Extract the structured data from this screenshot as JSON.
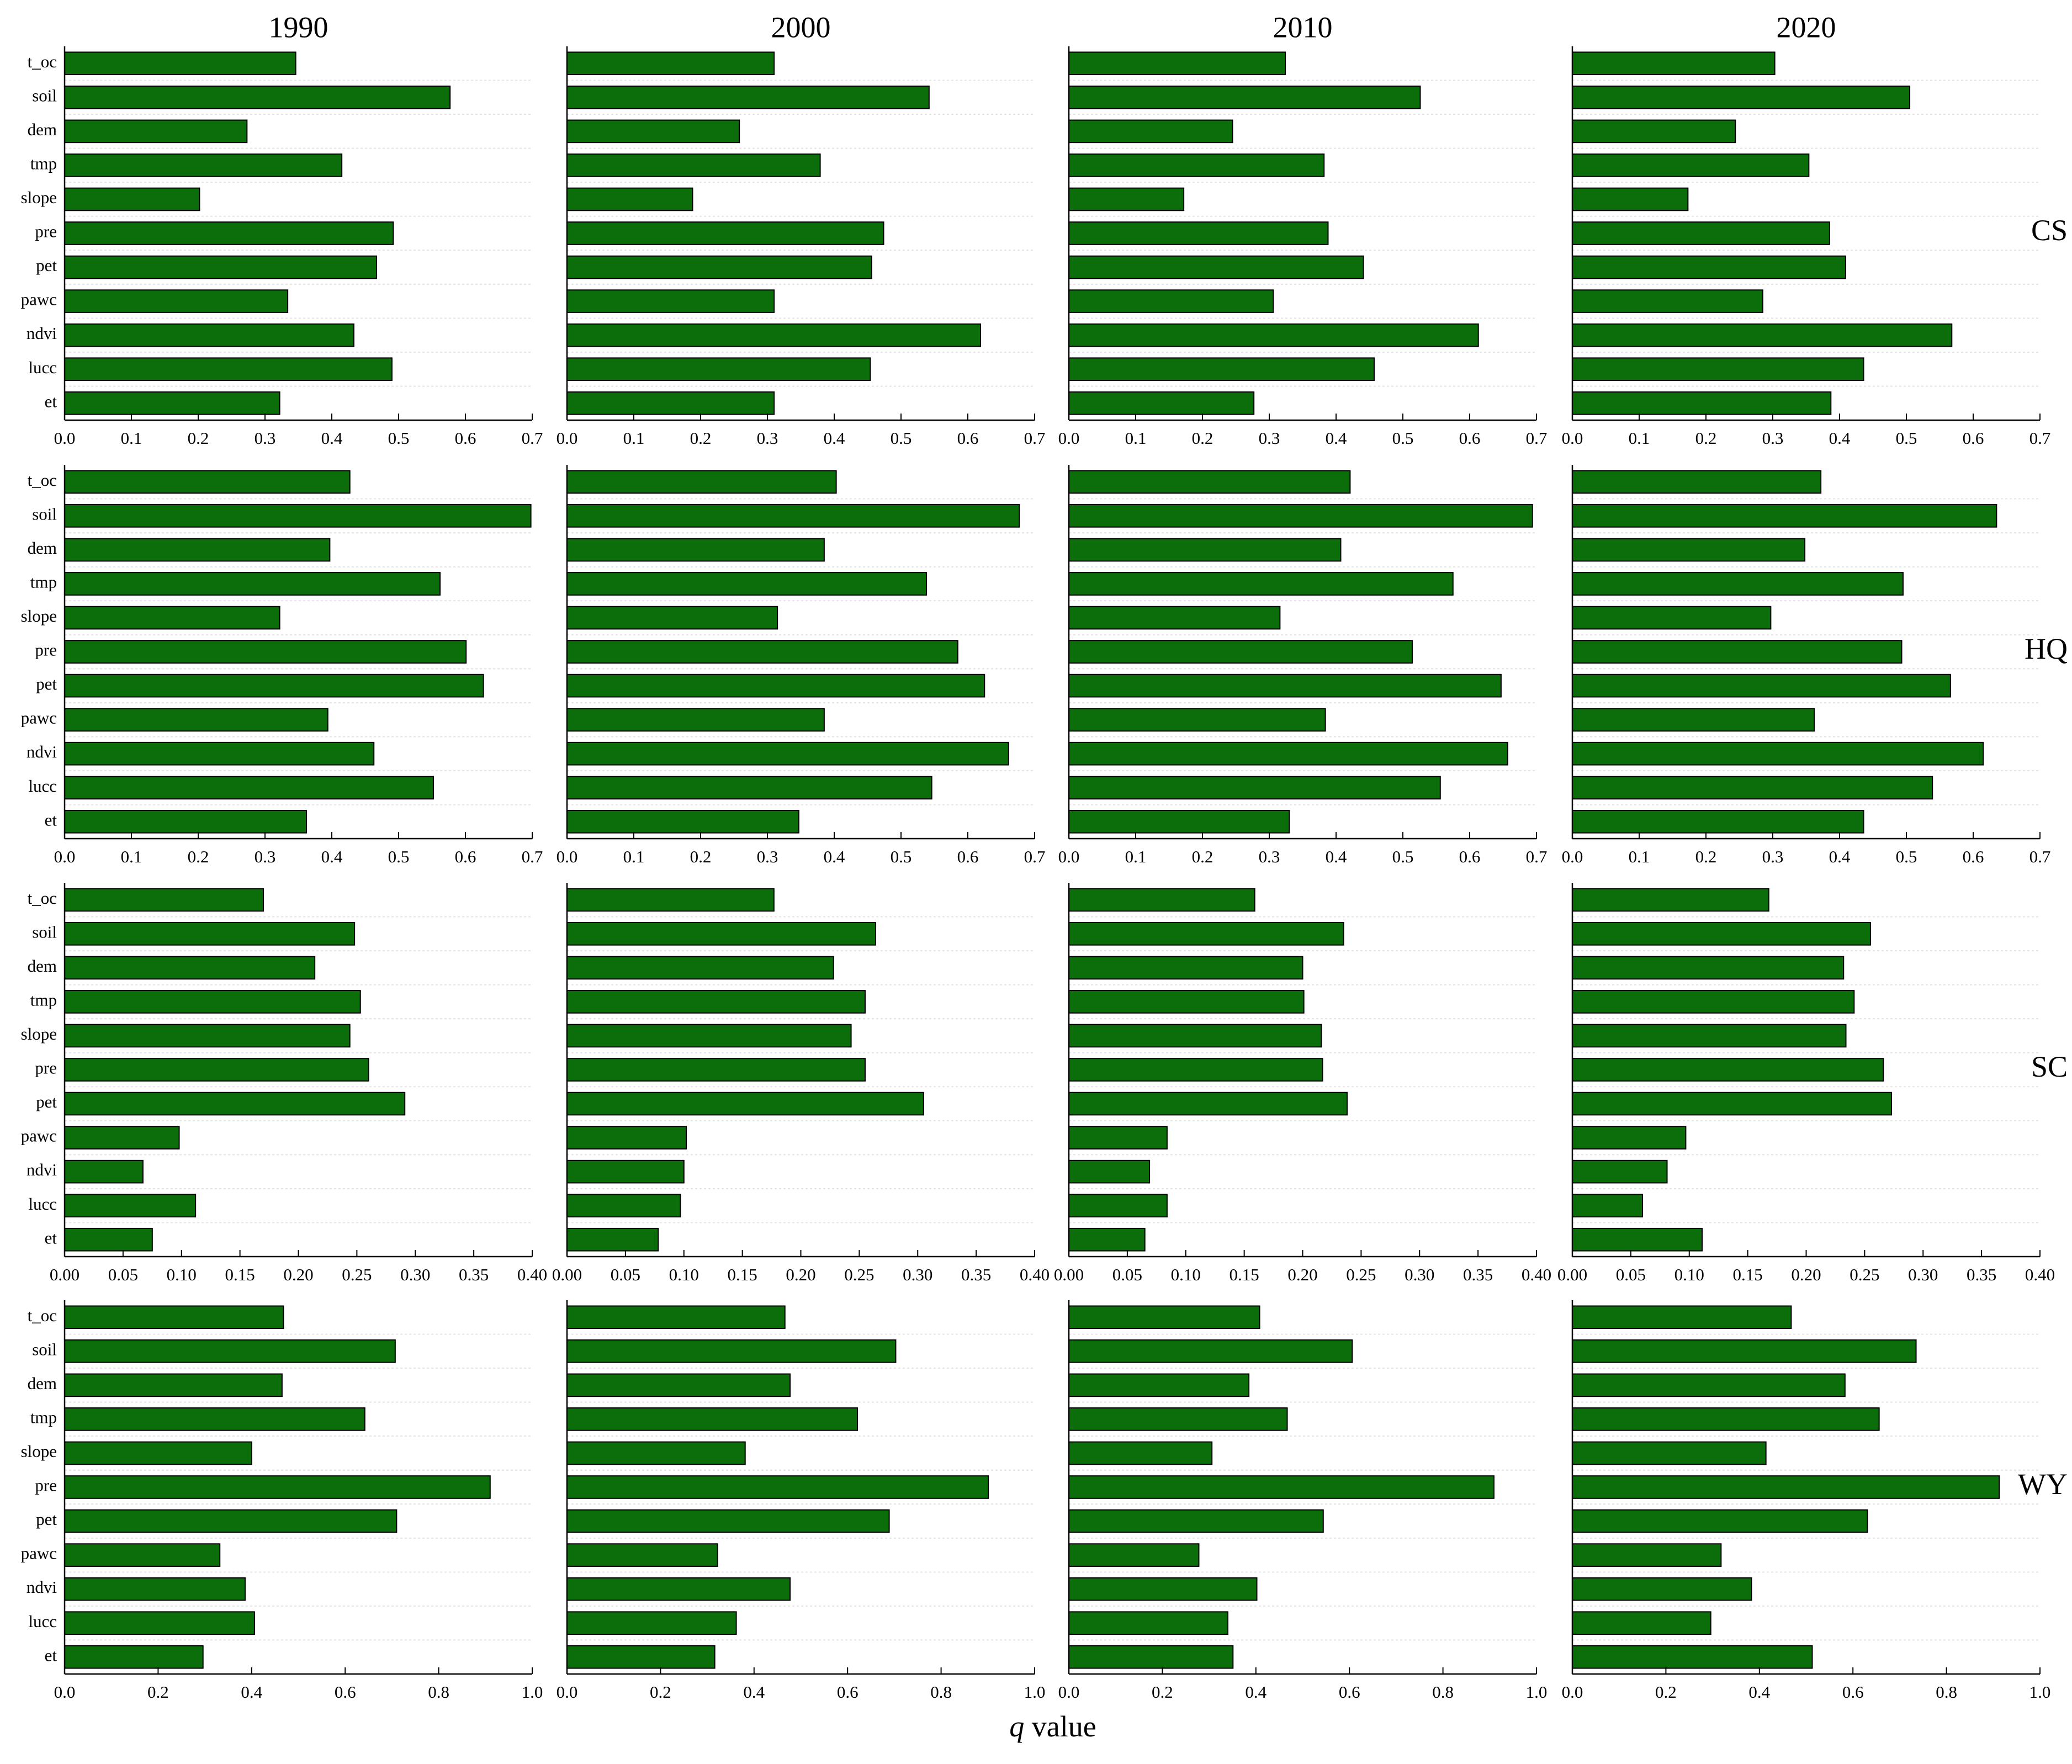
{
  "columns": [
    "1990",
    "2000",
    "2010",
    "2020"
  ],
  "xlabel": {
    "symbol": "q",
    "text": "value"
  },
  "chart_data": [
    {
      "type": "bar",
      "orientation": "horizontal",
      "label": "CS",
      "color": "#0b6e0b",
      "categories": [
        "t_oc",
        "soil",
        "dem",
        "tmp",
        "slope",
        "pre",
        "pet",
        "pawc",
        "ndvi",
        "lucc",
        "et"
      ],
      "xlim": [
        0,
        0.7
      ],
      "xticks": [
        {
          "value": 0,
          "label": "0.0"
        },
        0.1,
        0.2,
        0.3,
        0.4,
        0.5,
        0.6,
        0.7
      ],
      "series": [
        {
          "values": [
            0.346,
            0.577,
            0.273,
            0.415,
            0.202,
            0.492,
            0.467,
            0.334,
            0.433,
            0.49,
            0.322
          ]
        },
        {
          "values": [
            0.31,
            0.542,
            0.258,
            0.379,
            0.188,
            0.474,
            0.456,
            0.31,
            0.619,
            0.454,
            0.31
          ]
        },
        {
          "values": [
            0.324,
            0.526,
            0.245,
            0.382,
            0.172,
            0.388,
            0.441,
            0.306,
            0.613,
            0.457,
            0.277
          ]
        },
        {
          "values": [
            0.303,
            0.505,
            0.244,
            0.354,
            0.173,
            0.385,
            0.409,
            0.285,
            0.568,
            0.436,
            0.387
          ]
        }
      ]
    },
    {
      "type": "bar",
      "orientation": "horizontal",
      "label": "HQ",
      "color": "#0b6e0b",
      "categories": [
        "t_oc",
        "soil",
        "dem",
        "tmp",
        "slope",
        "pre",
        "pet",
        "pawc",
        "ndvi",
        "lucc",
        "et"
      ],
      "xlim": [
        0,
        0.7
      ],
      "xticks": [
        {
          "value": 0,
          "label": "0.0"
        },
        0.1,
        0.2,
        0.3,
        0.4,
        0.5,
        0.6,
        0.7
      ],
      "series": [
        {
          "values": [
            0.427,
            0.698,
            0.397,
            0.562,
            0.322,
            0.601,
            0.627,
            0.394,
            0.463,
            0.552,
            0.362
          ]
        },
        {
          "values": [
            0.403,
            0.677,
            0.385,
            0.538,
            0.315,
            0.585,
            0.625,
            0.385,
            0.661,
            0.546,
            0.347
          ]
        },
        {
          "values": [
            0.421,
            0.694,
            0.407,
            0.575,
            0.316,
            0.514,
            0.647,
            0.384,
            0.657,
            0.556,
            0.33
          ]
        },
        {
          "values": [
            0.372,
            0.635,
            0.348,
            0.495,
            0.297,
            0.493,
            0.566,
            0.362,
            0.615,
            0.539,
            0.436
          ]
        }
      ]
    },
    {
      "type": "bar",
      "orientation": "horizontal",
      "label": "SC",
      "color": "#0b6e0b",
      "categories": [
        "t_oc",
        "soil",
        "dem",
        "tmp",
        "slope",
        "pre",
        "pet",
        "pawc",
        "ndvi",
        "lucc",
        "et"
      ],
      "xlim": [
        0,
        0.4
      ],
      "xticks": [
        {
          "value": 0,
          "label": "0.00"
        },
        0.05,
        {
          "value": 0.1,
          "label": "0.10"
        },
        0.15,
        {
          "value": 0.2,
          "label": "0.20"
        },
        0.25,
        {
          "value": 0.3,
          "label": "0.30"
        },
        0.35,
        {
          "value": 0.4,
          "label": "0.40"
        }
      ],
      "series": [
        {
          "values": [
            0.17,
            0.248,
            0.214,
            0.253,
            0.244,
            0.26,
            0.291,
            0.098,
            0.067,
            0.112,
            0.075
          ]
        },
        {
          "values": [
            0.177,
            0.264,
            0.228,
            0.255,
            0.243,
            0.255,
            0.305,
            0.102,
            0.1,
            0.097,
            0.078
          ]
        },
        {
          "values": [
            0.159,
            0.235,
            0.2,
            0.201,
            0.216,
            0.217,
            0.238,
            0.084,
            0.069,
            0.084,
            0.065
          ]
        },
        {
          "values": [
            0.168,
            0.255,
            0.232,
            0.241,
            0.234,
            0.266,
            0.273,
            0.097,
            0.081,
            0.06,
            0.111
          ]
        }
      ]
    },
    {
      "type": "bar",
      "orientation": "horizontal",
      "label": "WY",
      "color": "#0b6e0b",
      "categories": [
        "t_oc",
        "soil",
        "dem",
        "tmp",
        "slope",
        "pre",
        "pet",
        "pawc",
        "ndvi",
        "lucc",
        "et"
      ],
      "xlim": [
        0,
        1
      ],
      "xticks": [
        {
          "value": 0,
          "label": "0.0"
        },
        0.2,
        0.4,
        0.6,
        0.8,
        {
          "value": 1,
          "label": "1.0"
        }
      ],
      "series": [
        {
          "values": [
            0.468,
            0.707,
            0.465,
            0.642,
            0.4,
            0.91,
            0.71,
            0.332,
            0.386,
            0.406,
            0.296
          ]
        },
        {
          "values": [
            0.466,
            0.703,
            0.477,
            0.621,
            0.381,
            0.901,
            0.689,
            0.322,
            0.477,
            0.362,
            0.316
          ]
        },
        {
          "values": [
            0.408,
            0.606,
            0.385,
            0.467,
            0.306,
            0.909,
            0.544,
            0.278,
            0.402,
            0.34,
            0.351
          ]
        },
        {
          "values": [
            0.468,
            0.735,
            0.583,
            0.656,
            0.414,
            0.913,
            0.631,
            0.318,
            0.383,
            0.296,
            0.513
          ]
        }
      ]
    }
  ]
}
